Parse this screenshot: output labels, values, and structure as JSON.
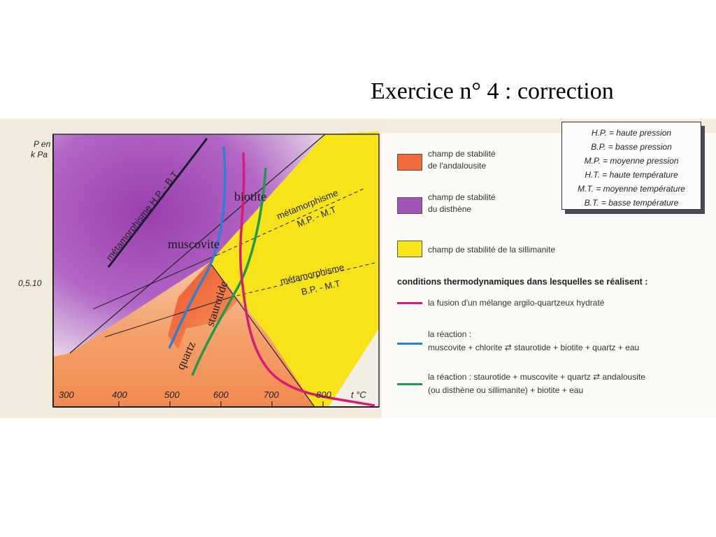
{
  "slide": {
    "title": "Exercice n° 4 : correction"
  },
  "axes": {
    "y_label_1": "P en",
    "y_label_2": "k Pa",
    "y_tick": "0,5.10",
    "x_label": "t  °C",
    "x_ticks": [
      "300",
      "400",
      "500",
      "600",
      "700",
      "800"
    ]
  },
  "diagram_labels": {
    "hp_bt": "métamorphisme H.P. - B.T",
    "mp_mt_1": "métamorphisme",
    "mp_mt_2": "M.P. - M.T",
    "bp_mt_1": "métamorphisme",
    "bp_mt_2": "B.P. - M.T",
    "biotite": "biotite",
    "muscovite": "muscovite",
    "staurotide": "staurotide",
    "quartz": "quartz"
  },
  "abbreviations": [
    "H.P. = haute pression",
    "B.P. = basse pression",
    "M.P. = moyenne pression",
    "H.T. = haute température",
    "M.T. = moyenne température",
    "B.T. = basse température"
  ],
  "legend": {
    "andalousite_1": "champ de stabilité",
    "andalousite_2": "de l'andalousite",
    "disthene_1": "champ de stabilité",
    "disthene_2": "du disthène",
    "sillimanite": "champ de stabilité de la sillimanite",
    "conditions_title": "conditions thermodynamiques dans lesquelles se réalisent :",
    "fusion": "la fusion d'un mélange argilo-quartzeux hydraté",
    "reaction1_title": "la réaction :",
    "reaction1_eq": "muscovite +  chlorite ⇄ staurotide +  biotite +  quartz +  eau",
    "reaction2_line1": "la réaction : staurotide +  muscovite +  quartz ⇄ andalousite",
    "reaction2_line2": "(ou disthène ou sillimanite) +  biotite +  eau"
  },
  "colors": {
    "andalousite": "#f26a3c",
    "disthene": "#a455b8",
    "sillimanite": "#f9e51c",
    "fusion": "#d81b74",
    "reaction1": "#2a7fd6",
    "reaction2": "#1f9a4a"
  }
}
